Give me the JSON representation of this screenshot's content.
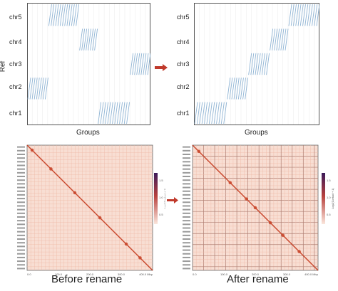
{
  "top_left": {
    "ylabel": "Ref",
    "xlabel": "Groups",
    "chromosomes": [
      "chr1",
      "chr2",
      "chr3",
      "chr4",
      "chr5"
    ]
  },
  "top_right": {
    "xlabel": "Groups",
    "chromosomes": [
      "chr1",
      "chr2",
      "chr3",
      "chr4",
      "chr5"
    ]
  },
  "captions": {
    "before": "Before rename",
    "after": "After rename"
  },
  "heatmap_left": {
    "colorbar_title": "Log2(Contact + 1)",
    "colorbar_ticks": [
      "1.5",
      "1.0",
      "0.5"
    ],
    "x_ticks": [
      "0.0",
      "100.0",
      "200.0",
      "300.0",
      "400.0 Mbp"
    ]
  },
  "heatmap_right": {
    "colorbar_title": "Log2(Contact + 1)",
    "colorbar_ticks": [
      "1.5",
      "1.0",
      "0.5"
    ],
    "x_ticks": [
      "0.0",
      "100.0",
      "200.0",
      "300.0",
      "400.0 Mbp"
    ]
  },
  "colors": {
    "line": "#8fb4d4",
    "grid": "#eeeeee",
    "heat_bg": "#f8ded3",
    "heat_diag": "#c8452a",
    "arrow": "#c0392b",
    "colorbar_top": "#3b1a5a",
    "colorbar_mid": "#b8413e",
    "colorbar_bottom": "#fbe6dc"
  },
  "chart_data": [
    {
      "type": "scatter",
      "panel": "before",
      "ylabel": "Ref",
      "xlabel": "Groups",
      "categories": [
        "chr1",
        "chr2",
        "chr3",
        "chr4",
        "chr5"
      ],
      "blocks": [
        {
          "chr": "chr1",
          "x_range": [
            0.57,
            0.83
          ]
        },
        {
          "chr": "chr2",
          "x_range": [
            0.0,
            0.17
          ]
        },
        {
          "chr": "chr3",
          "x_range": [
            0.83,
            1.0
          ]
        },
        {
          "chr": "chr4",
          "x_range": [
            0.42,
            0.57
          ]
        },
        {
          "chr": "chr5",
          "x_range": [
            0.17,
            0.42
          ]
        }
      ]
    },
    {
      "type": "scatter",
      "panel": "after",
      "xlabel": "Groups",
      "categories": [
        "chr1",
        "chr2",
        "chr3",
        "chr4",
        "chr5"
      ],
      "blocks": [
        {
          "chr": "chr1",
          "x_range": [
            0.0,
            0.26
          ]
        },
        {
          "chr": "chr2",
          "x_range": [
            0.26,
            0.43
          ]
        },
        {
          "chr": "chr3",
          "x_range": [
            0.43,
            0.6
          ]
        },
        {
          "chr": "chr4",
          "x_range": [
            0.6,
            0.75
          ]
        },
        {
          "chr": "chr5",
          "x_range": [
            0.75,
            1.0
          ]
        }
      ]
    },
    {
      "type": "heatmap",
      "panel": "before",
      "x_ticks": [
        "0.0",
        "100.0",
        "200.0",
        "300.0",
        "400.0 Mbp"
      ],
      "colorbar_ticks": [
        1.5,
        1.0,
        0.5
      ]
    },
    {
      "type": "heatmap",
      "panel": "after",
      "x_ticks": [
        "0.0",
        "100.0",
        "200.0",
        "300.0",
        "400.0 Mbp"
      ],
      "colorbar_ticks": [
        1.5,
        1.0,
        0.5
      ]
    }
  ]
}
